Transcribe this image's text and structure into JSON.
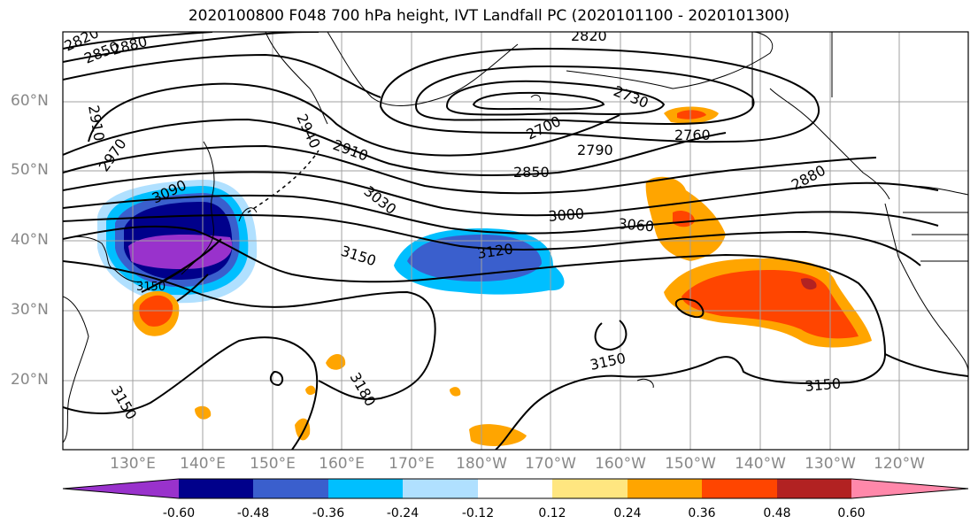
{
  "title": "2020100800 F048 700 hPa height, IVT Landfall PC (2020101100 - 2020101300)",
  "lat_labels": [
    "60°N",
    "50°N",
    "40°N",
    "30°N",
    "20°N"
  ],
  "lon_labels": [
    "130°E",
    "140°E",
    "150°E",
    "160°E",
    "170°E",
    "180°W",
    "170°W",
    "160°W",
    "150°W",
    "140°W",
    "130°W",
    "120°W"
  ],
  "contour_labels": [
    "2820",
    "2850",
    "2880",
    "2910",
    "2970",
    "2940",
    "2910",
    "2820",
    "2730",
    "2700",
    "2760",
    "2790",
    "2850",
    "2880",
    "3090",
    "3030",
    "3000",
    "3060",
    "3120",
    "3150",
    "3150",
    "3150",
    "3180",
    "3150",
    "3150"
  ],
  "colorbar": {
    "colors": [
      "#9932cc",
      "#00008b",
      "#3a5fcd",
      "#00bfff",
      "#b0e0ff",
      "#ffffff",
      "#ffe680",
      "#ffa500",
      "#ff4500",
      "#b22222",
      "#ff88aa"
    ],
    "ticks": [
      "-0.60",
      "-0.48",
      "-0.36",
      "-0.24",
      "-0.12",
      "0.12",
      "0.24",
      "0.36",
      "0.48",
      "0.60"
    ]
  }
}
